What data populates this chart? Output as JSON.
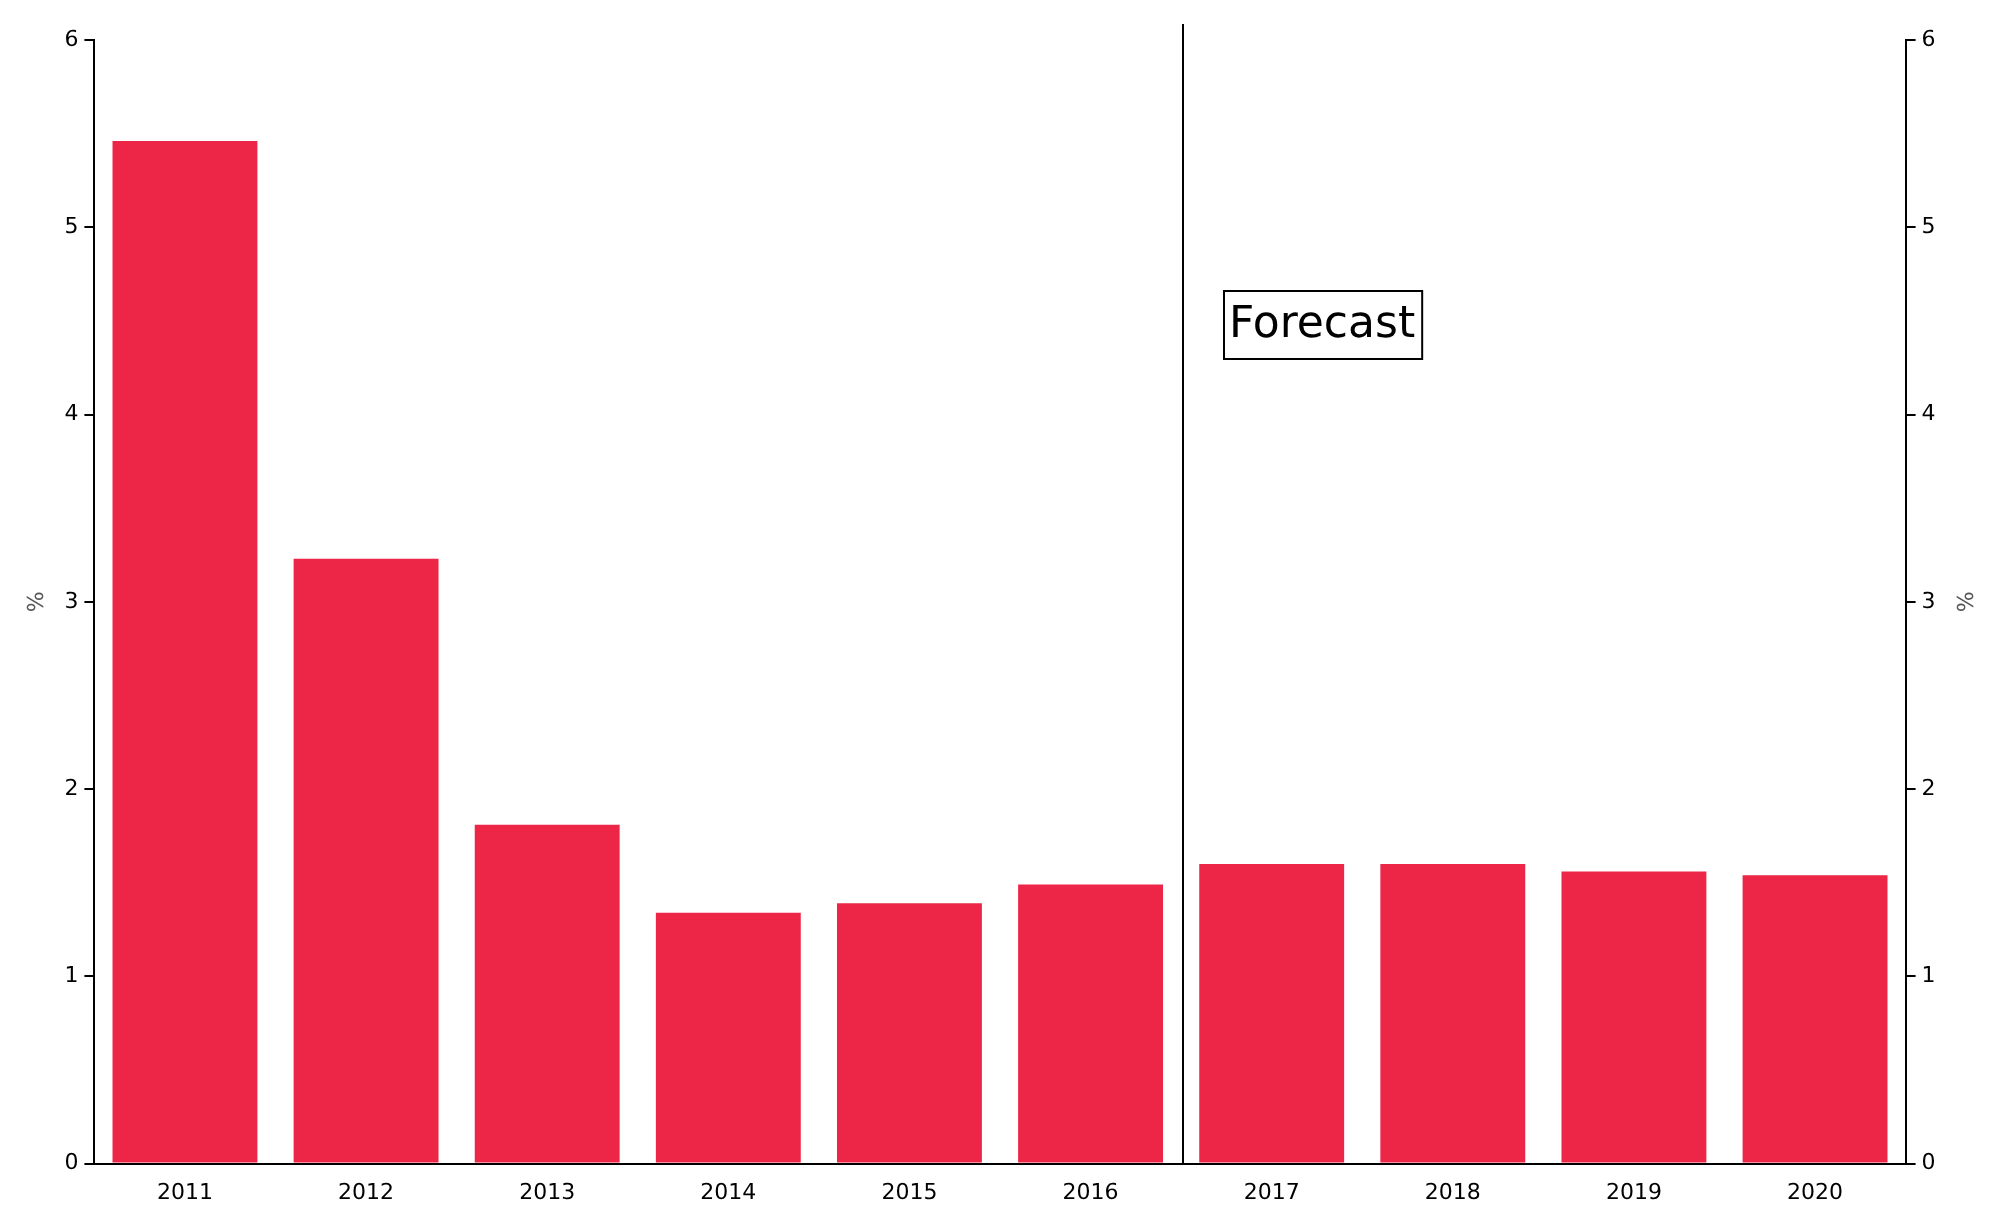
{
  "chart_data": {
    "type": "bar",
    "categories": [
      "2011",
      "2012",
      "2013",
      "2014",
      "2015",
      "2016",
      "2017",
      "2018",
      "2019",
      "2020"
    ],
    "values": [
      5.46,
      3.23,
      1.81,
      1.34,
      1.39,
      1.49,
      1.6,
      1.6,
      1.56,
      1.54
    ],
    "color": "#ed2647",
    "ylabel": "%",
    "y2label": "%",
    "ylim": [
      0,
      6
    ],
    "yticks": [
      0,
      1,
      2,
      3,
      4,
      5,
      6
    ],
    "y2lim": [
      0,
      6
    ],
    "y2ticks": [
      0,
      1,
      2,
      3,
      4,
      5,
      6
    ],
    "annotations": [
      "Forecast"
    ],
    "grid": false,
    "legend": false
  }
}
